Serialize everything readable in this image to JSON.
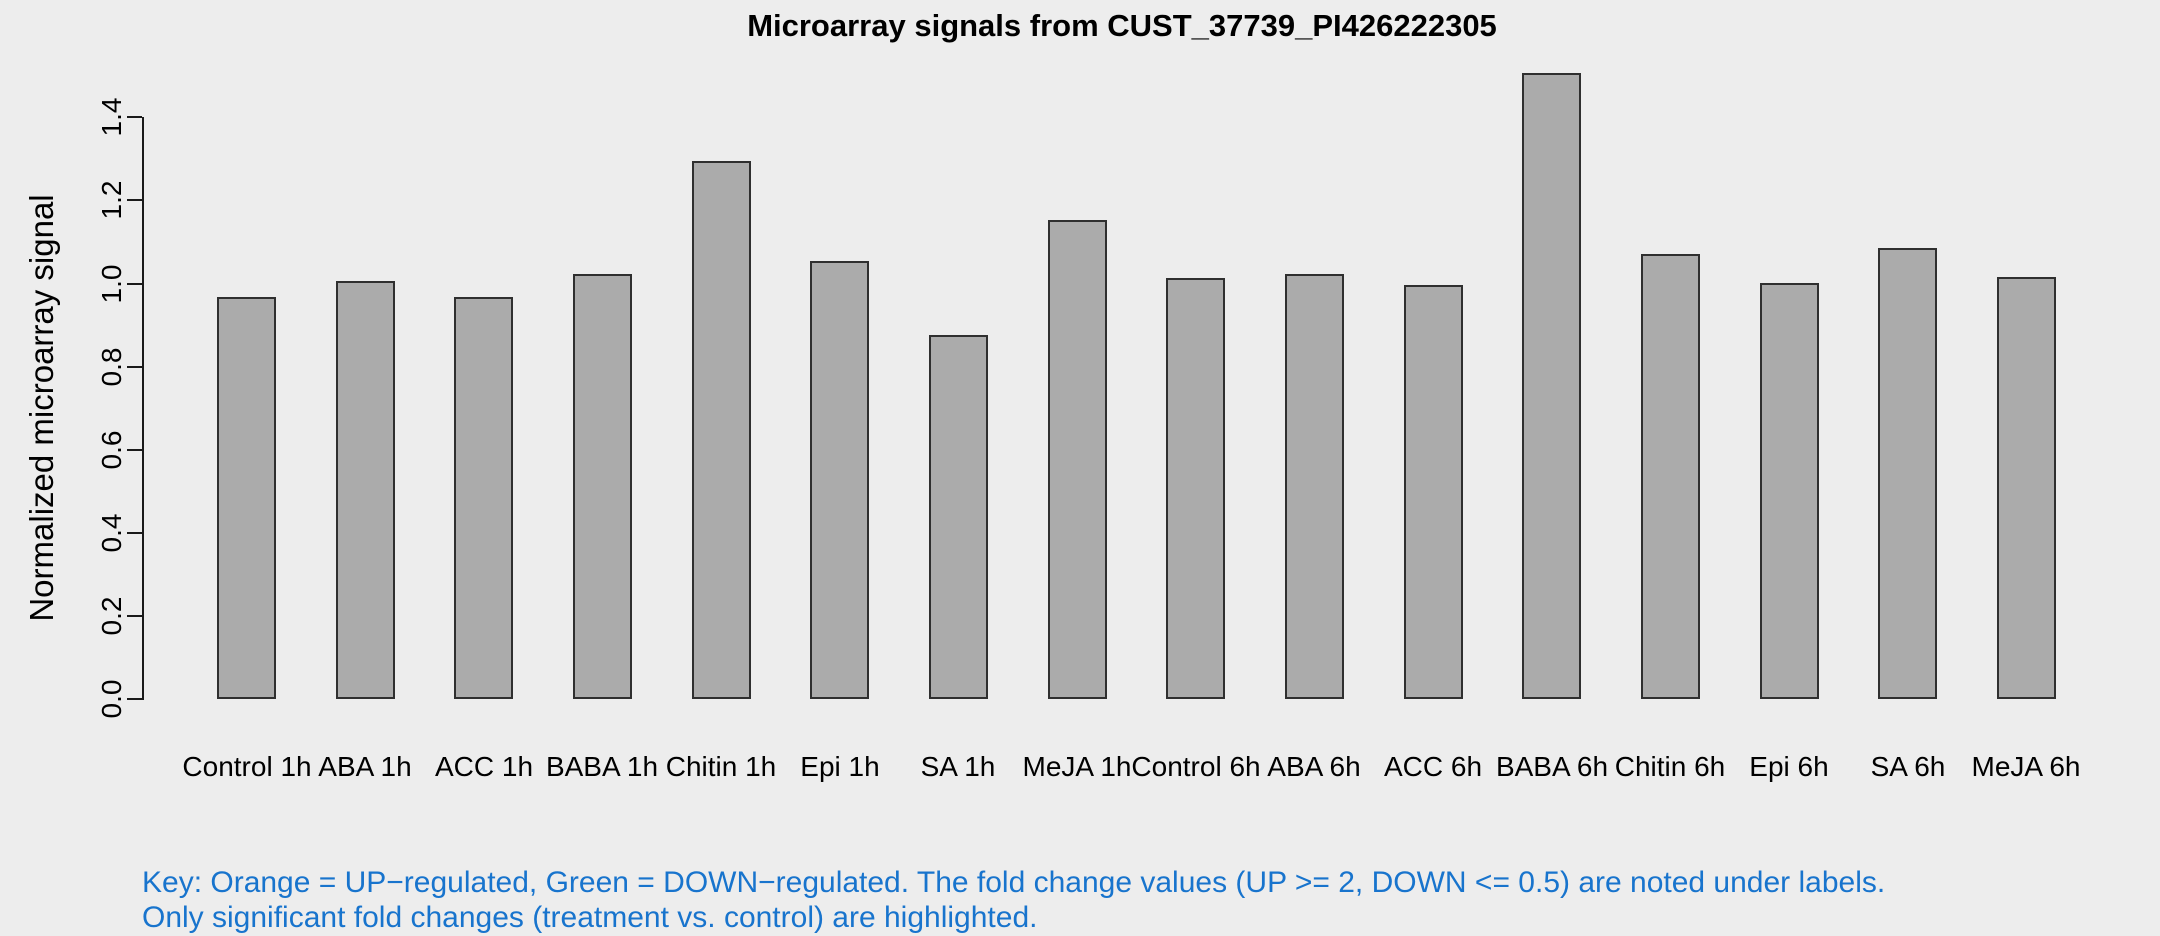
{
  "page": {
    "background": "#ededed"
  },
  "chart_data": {
    "type": "bar",
    "title": "Microarray signals from CUST_37739_PI426222305",
    "ylabel": "Normalized microarray signal",
    "xlabel": "",
    "categories": [
      "Control 1h",
      "ABA 1h",
      "ACC 1h",
      "BABA 1h",
      "Chitin 1h",
      "Epi 1h",
      "SA 1h",
      "MeJA 1h",
      "Control 6h",
      "ABA 6h",
      "ACC 6h",
      "BABA 6h",
      "Chitin 6h",
      "Epi 6h",
      "SA 6h",
      "MeJA 6h"
    ],
    "values": [
      0.967,
      1.007,
      0.967,
      1.024,
      1.296,
      1.053,
      0.875,
      1.154,
      1.013,
      1.023,
      0.996,
      1.507,
      1.071,
      1.002,
      1.085,
      1.015
    ],
    "yticks": [
      0.0,
      0.2,
      0.4,
      0.6,
      0.8,
      1.0,
      1.2,
      1.4
    ],
    "ytick_labels": [
      "0.0",
      "0.2",
      "0.4",
      "0.6",
      "0.8",
      "1.0",
      "1.2",
      "1.4"
    ],
    "ylim": [
      0,
      1.4
    ],
    "grid": false,
    "legend": "none",
    "bar_fill": "#ababab",
    "bar_border": "#2f2f2f",
    "axis_color": "#1a1a1a",
    "text_color": "#000000"
  },
  "footnote": {
    "line1": "Key: Orange = UP−regulated, Green = DOWN−regulated. The fold change values (UP >= 2, DOWN <= 0.5) are noted under labels.",
    "line2": "Only significant fold changes (treatment vs. control) are highlighted.",
    "color": "#1874cd"
  }
}
